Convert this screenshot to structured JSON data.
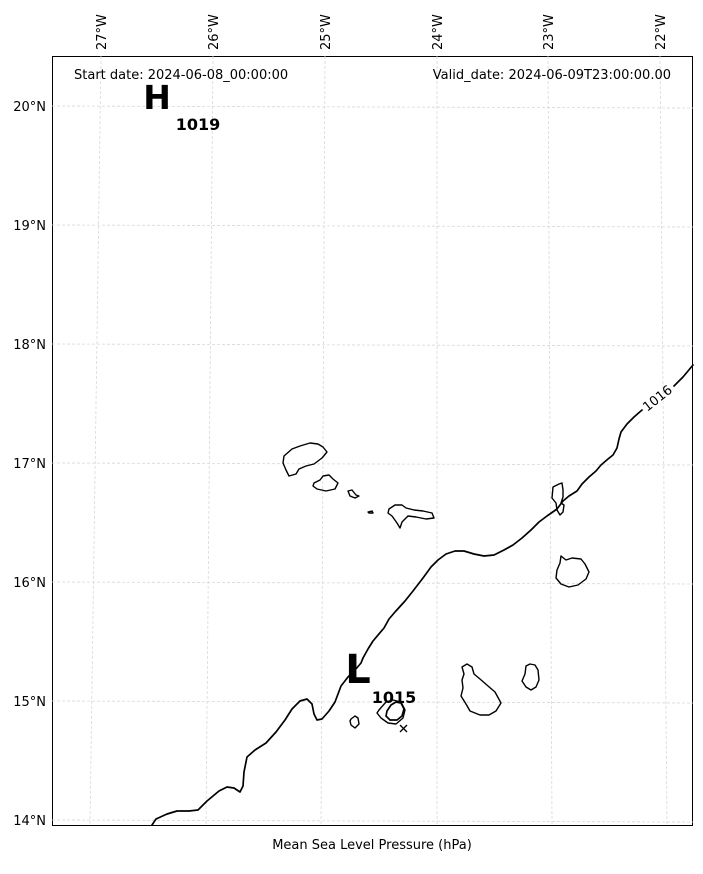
{
  "header": {
    "start_date": "Start date: 2024-06-08_00:00:00",
    "valid_date": "Valid_date: 2024-06-09T23:00:00.00"
  },
  "footer": {
    "caption": "Mean Sea Level Pressure (hPa)"
  },
  "axes": {
    "longitude_labels": [
      "27°W",
      "26°W",
      "25°W",
      "24°W",
      "23°W",
      "22°W"
    ],
    "latitude_labels": [
      "20°N",
      "19°N",
      "18°N",
      "17°N",
      "16°N",
      "15°N",
      "14°N"
    ]
  },
  "pressure_systems": [
    {
      "symbol": "H",
      "value": "1019"
    },
    {
      "symbol": "L",
      "value": "1015"
    }
  ],
  "isobars": [
    {
      "label": "1016"
    }
  ],
  "colors": {
    "coast": "#000000",
    "isobar": "#000000",
    "grid": "#cfcfcf",
    "frame": "#000000"
  }
}
